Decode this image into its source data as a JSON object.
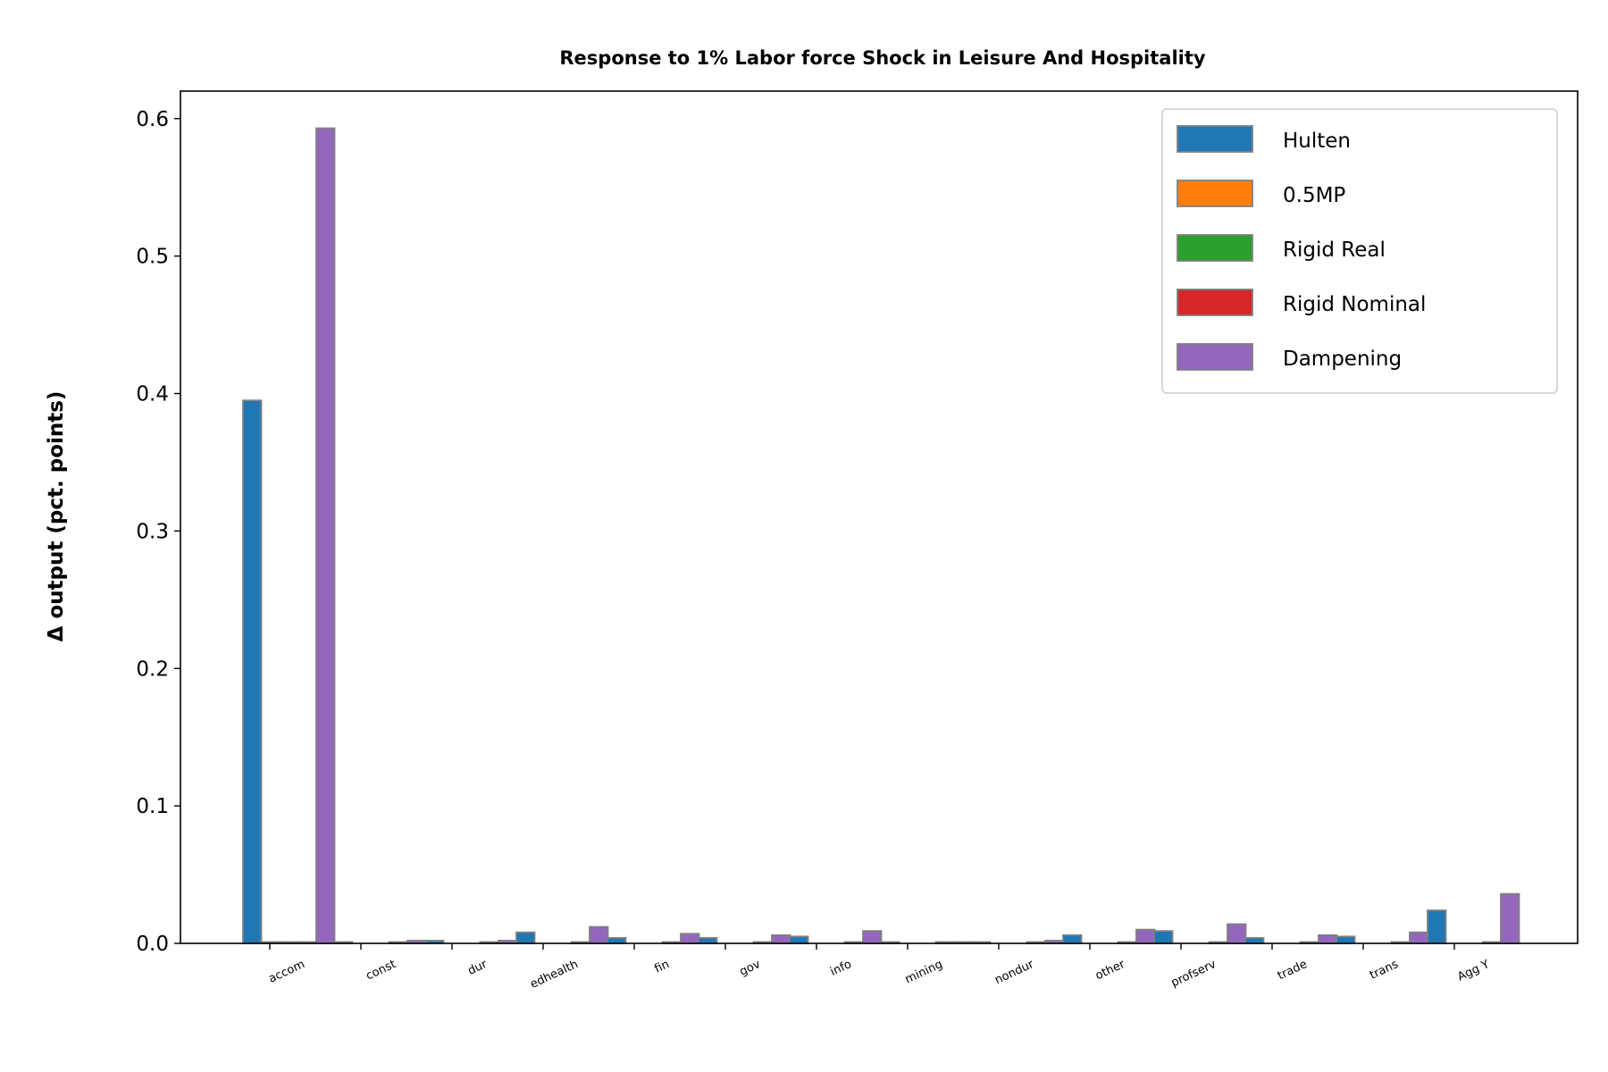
{
  "chart_data": {
    "type": "bar",
    "title": "Response to 1% Labor force Shock in Leisure And Hospitality",
    "xlabel": "",
    "ylabel": "Δ output (pct. points)",
    "ylim": [
      0,
      0.62
    ],
    "yticks": [
      "0.0",
      "0.1",
      "0.2",
      "0.3",
      "0.4",
      "0.5",
      "0.6"
    ],
    "grid": false,
    "legend_position": "top-right",
    "categories": [
      "accom",
      "const",
      "dur",
      "edhealth",
      "fin",
      "gov",
      "info",
      "mining",
      "nondur",
      "other",
      "profserv",
      "trade",
      "trans",
      "Agg Y"
    ],
    "series": [
      {
        "name": "Hulten",
        "color": "#1f77b4",
        "values": [
          0.395,
          0.001,
          0.002,
          0.008,
          0.004,
          0.004,
          0.005,
          0.001,
          0.001,
          0.006,
          0.009,
          0.004,
          0.005,
          0.024
        ]
      },
      {
        "name": "0.5MP",
        "color": "#ff7f0e",
        "values": [
          0.001,
          0.0,
          0.0,
          0.0,
          0.0,
          0.0,
          0.0,
          0.0,
          0.0,
          0.0,
          0.0,
          0.0,
          0.0,
          0.0
        ]
      },
      {
        "name": "Rigid Real",
        "color": "#2ca02c",
        "values": [
          0.001,
          0.0,
          0.0,
          0.0,
          0.0,
          0.0,
          0.0,
          0.0,
          0.0,
          0.0,
          0.0,
          0.0,
          0.0,
          0.0
        ]
      },
      {
        "name": "Rigid Nominal",
        "color": "#d62728",
        "values": [
          0.001,
          0.001,
          0.001,
          0.001,
          0.001,
          0.001,
          0.001,
          0.001,
          0.001,
          0.001,
          0.001,
          0.001,
          0.001,
          0.001
        ]
      },
      {
        "name": "Dampening",
        "color": "#9467bd",
        "values": [
          0.593,
          0.002,
          0.002,
          0.012,
          0.007,
          0.006,
          0.009,
          0.001,
          0.002,
          0.01,
          0.014,
          0.006,
          0.008,
          0.036
        ]
      }
    ]
  }
}
